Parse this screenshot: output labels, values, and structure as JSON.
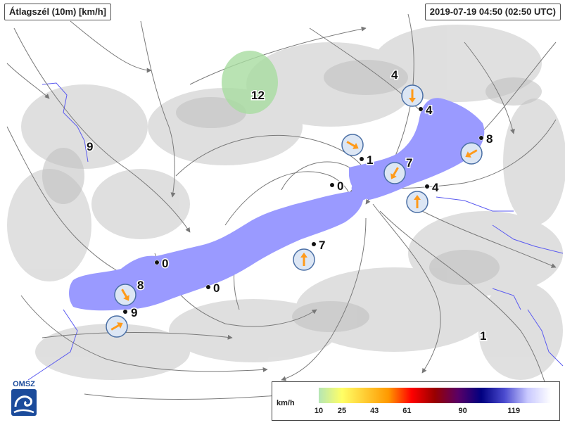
{
  "header": {
    "title": "Átlagszél (10m) [km/h]",
    "timestamp": "2019-07-19 04:50 (02:50 UTC)"
  },
  "legend": {
    "unit": "km/h",
    "ticks": [
      "10",
      "25",
      "43",
      "61",
      "90",
      "119"
    ],
    "colors": [
      "#b5e6b5",
      "#ffff66",
      "#ffcc33",
      "#ff9900",
      "#ff0000",
      "#990000",
      "#5a0066",
      "#000080",
      "#4b4bcf",
      "#c9c9ff",
      "#ffffff"
    ]
  },
  "logo": {
    "text": "OMSZ"
  },
  "colors": {
    "lake": "#9a9aff",
    "calm_area": "#a8dca0",
    "arrow": "#ff9a1a",
    "circle_fill": "#dce6f4",
    "circle_stroke": "#4a6fa5"
  },
  "stations": [
    {
      "label": "12",
      "icon": "none"
    },
    {
      "label": "9",
      "icon": "none"
    },
    {
      "label": "4",
      "icon": "none"
    },
    {
      "label": "4",
      "icon": "station-dot"
    },
    {
      "label": "8",
      "icon": "station-dot"
    },
    {
      "label": "1",
      "icon": "station-dot"
    },
    {
      "label": "7",
      "icon": "none"
    },
    {
      "label": "0",
      "icon": "station-dot"
    },
    {
      "label": "4",
      "icon": "station-dot"
    },
    {
      "label": "7",
      "icon": "station-dot"
    },
    {
      "label": "0",
      "icon": "station-dot"
    },
    {
      "label": "0",
      "icon": "station-dot"
    },
    {
      "label": "8",
      "icon": "none"
    },
    {
      "label": "9",
      "icon": "station-dot"
    },
    {
      "label": "1",
      "icon": "none"
    }
  ],
  "wind_arrows": [
    {
      "direction_deg": 180
    },
    {
      "direction_deg": 120
    },
    {
      "direction_deg": 240
    },
    {
      "direction_deg": 210
    },
    {
      "direction_deg": 0
    },
    {
      "direction_deg": 0
    },
    {
      "direction_deg": 150
    },
    {
      "direction_deg": 60
    }
  ]
}
